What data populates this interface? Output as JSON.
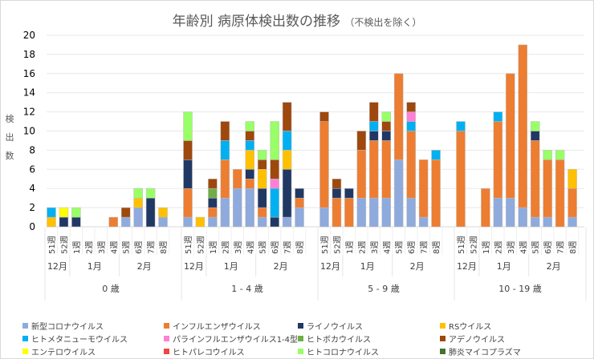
{
  "chart_data": {
    "type": "bar",
    "stacked": true,
    "title": "年齢別 病原体検出数の推移",
    "subtitle": "（不検出を除く）",
    "ylabel": "検出数",
    "xlabel": "",
    "ylim": [
      0,
      20
    ],
    "yticks": [
      0,
      2,
      4,
      6,
      8,
      10,
      12,
      14,
      16,
      18,
      20
    ],
    "grid": true,
    "legend_position": "bottom",
    "groups": [
      {
        "label": "0 歳"
      },
      {
        "label": "1 - 4 歳"
      },
      {
        "label": "5 - 9 歳"
      },
      {
        "label": "10 - 19 歳"
      }
    ],
    "months": [
      {
        "label": "12月",
        "span": 2
      },
      {
        "label": "1月",
        "span": 4
      },
      {
        "label": "2月",
        "span": 4
      }
    ],
    "weeks": [
      "51週",
      "52週",
      "1週",
      "2週",
      "3週",
      "4週",
      "5週",
      "6週",
      "7週",
      "8週"
    ],
    "series": [
      {
        "name": "新型コロナウイルス",
        "color": "#8FAADC",
        "values": [
          [
            0,
            0,
            0,
            0,
            0,
            0,
            1,
            2,
            0,
            1
          ],
          [
            1,
            0,
            1,
            3,
            4,
            4,
            1,
            0,
            1,
            2
          ],
          [
            2,
            0,
            0,
            3,
            3,
            3,
            7,
            3,
            1,
            0
          ],
          [
            0,
            0,
            0,
            3,
            3,
            2,
            1,
            1,
            0,
            1
          ]
        ]
      },
      {
        "name": "インフルエンザウイルス",
        "color": "#ED7D31",
        "values": [
          [
            0,
            0,
            0,
            0,
            0,
            1,
            0,
            0,
            0,
            0
          ],
          [
            3,
            0,
            1,
            4,
            2,
            1,
            1,
            0,
            0,
            1
          ],
          [
            9,
            3,
            3,
            5,
            6,
            6,
            9,
            7,
            6,
            7
          ],
          [
            10,
            0,
            4,
            8,
            13,
            17,
            8,
            6,
            7,
            3
          ]
        ]
      },
      {
        "name": "ライノウイルス",
        "color": "#203864",
        "values": [
          [
            0,
            1,
            1,
            0,
            0,
            0,
            0,
            0,
            3,
            0
          ],
          [
            3,
            0,
            1,
            0,
            0,
            1,
            2,
            1,
            5,
            1
          ],
          [
            0,
            1,
            1,
            0,
            1,
            1,
            0,
            0,
            0,
            0
          ],
          [
            0,
            0,
            0,
            0,
            0,
            0,
            1,
            0,
            0,
            0
          ]
        ]
      },
      {
        "name": "RSウイルス",
        "color": "#FFC000",
        "values": [
          [
            1,
            0,
            0,
            0,
            0,
            0,
            0,
            1,
            0,
            1
          ],
          [
            0,
            1,
            0,
            0,
            0,
            2,
            2,
            0,
            2,
            0
          ],
          [
            0,
            0,
            0,
            0,
            0,
            0,
            0,
            0,
            0,
            0
          ],
          [
            0,
            0,
            0,
            0,
            0,
            0,
            0,
            0,
            0,
            2
          ]
        ]
      },
      {
        "name": "ヒトメタニューモウイルス",
        "color": "#00B0F0",
        "values": [
          [
            1,
            0,
            0,
            0,
            0,
            0,
            0,
            0,
            0,
            0
          ],
          [
            0,
            0,
            0,
            2,
            0,
            1,
            0,
            3,
            2,
            0
          ],
          [
            0,
            0,
            0,
            0,
            1,
            0,
            0,
            1,
            0,
            1
          ],
          [
            1,
            0,
            0,
            1,
            0,
            0,
            0,
            0,
            0,
            0
          ]
        ]
      },
      {
        "name": "パラインフルエンザウイルス1-4型",
        "color": "#FF7FD4",
        "values": [
          [
            0,
            0,
            0,
            0,
            0,
            0,
            0,
            0,
            0,
            0
          ],
          [
            0,
            0,
            0,
            0,
            0,
            0,
            0,
            1,
            0,
            0
          ],
          [
            0,
            0,
            0,
            0,
            0,
            0,
            0,
            1,
            0,
            0
          ],
          [
            0,
            0,
            0,
            0,
            0,
            0,
            0,
            0,
            0,
            0
          ]
        ]
      },
      {
        "name": "ヒトボカウイルス",
        "color": "#70AD47",
        "values": [
          [
            0,
            0,
            0,
            0,
            0,
            0,
            0,
            0,
            0,
            0
          ],
          [
            0,
            0,
            1,
            0,
            0,
            0,
            0,
            0,
            0,
            0
          ],
          [
            0,
            0,
            0,
            0,
            0,
            0,
            0,
            0,
            0,
            0
          ],
          [
            0,
            0,
            0,
            0,
            0,
            0,
            0,
            0,
            0,
            0
          ]
        ]
      },
      {
        "name": "アデノウイルス",
        "color": "#9E480E",
        "values": [
          [
            0,
            0,
            0,
            0,
            0,
            0,
            1,
            0,
            0,
            0
          ],
          [
            2,
            0,
            1,
            2,
            0,
            1,
            1,
            2,
            3,
            0
          ],
          [
            1,
            1,
            0,
            2,
            2,
            1,
            0,
            1,
            0,
            0
          ],
          [
            0,
            0,
            0,
            0,
            0,
            0,
            0,
            0,
            0,
            0
          ]
        ]
      },
      {
        "name": "エンテロウイルス",
        "color": "#FFFF00",
        "values": [
          [
            0,
            1,
            0,
            0,
            0,
            0,
            0,
            0,
            0,
            0
          ],
          [
            0,
            0,
            0,
            0,
            0,
            0,
            0,
            0,
            0,
            0
          ],
          [
            0,
            0,
            0,
            0,
            0,
            0,
            0,
            0,
            0,
            0
          ],
          [
            0,
            0,
            0,
            0,
            0,
            0,
            0,
            0,
            0,
            0
          ]
        ]
      },
      {
        "name": "ヒトパレコウイルス",
        "color": "#F04646",
        "values": [
          [
            0,
            0,
            0,
            0,
            0,
            0,
            0,
            0,
            0,
            0
          ],
          [
            0,
            0,
            0,
            0,
            0,
            0,
            0,
            0,
            0,
            0
          ],
          [
            0,
            0,
            0,
            0,
            0,
            0,
            0,
            0,
            0,
            0
          ],
          [
            0,
            0,
            0,
            0,
            0,
            0,
            0,
            0,
            0,
            0
          ]
        ]
      },
      {
        "name": "ヒトコロナウイルス",
        "color": "#99FF66",
        "values": [
          [
            0,
            0,
            1,
            0,
            0,
            0,
            0,
            1,
            1,
            0
          ],
          [
            3,
            0,
            0,
            0,
            0,
            1,
            1,
            4,
            0,
            0
          ],
          [
            0,
            0,
            0,
            0,
            0,
            1,
            0,
            0,
            0,
            0
          ],
          [
            0,
            0,
            0,
            0,
            0,
            0,
            1,
            1,
            1,
            0
          ]
        ]
      },
      {
        "name": "肺炎マイコプラズマ",
        "color": "#44722E",
        "values": [
          [
            0,
            0,
            0,
            0,
            0,
            0,
            0,
            0,
            0,
            0
          ],
          [
            0,
            0,
            0,
            0,
            0,
            0,
            0,
            0,
            0,
            0
          ],
          [
            0,
            0,
            0,
            0,
            0,
            0,
            0,
            0,
            0,
            0
          ],
          [
            0,
            0,
            0,
            0,
            0,
            0,
            0,
            0,
            0,
            0
          ]
        ]
      }
    ]
  }
}
